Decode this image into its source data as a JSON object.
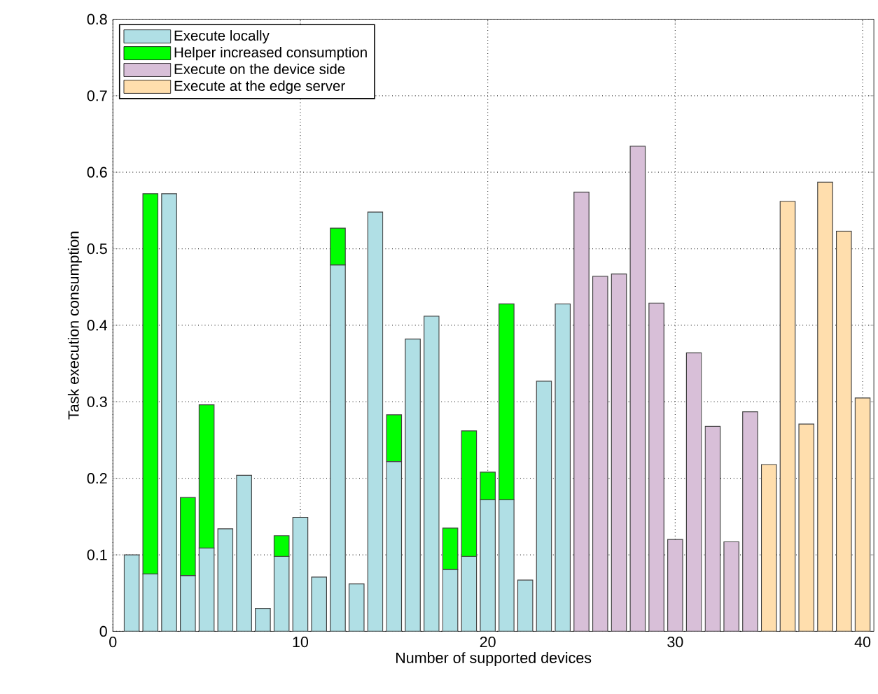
{
  "chart_data": {
    "type": "bar",
    "stacked": true,
    "xlabel": "Number of supported devices",
    "ylabel": "Task execution consumption",
    "x": [
      1,
      2,
      3,
      4,
      5,
      6,
      7,
      8,
      9,
      10,
      11,
      12,
      13,
      14,
      15,
      16,
      17,
      18,
      19,
      20,
      21,
      22,
      23,
      24,
      25,
      26,
      27,
      28,
      29,
      30,
      31,
      32,
      33,
      34,
      35,
      36,
      37,
      38,
      39,
      40
    ],
    "series": [
      {
        "name": "Execute locally",
        "color": "#b0dfe5",
        "values": [
          0.1,
          0.075,
          0.572,
          0.073,
          0.109,
          0.134,
          0.204,
          0.03,
          0.098,
          0.149,
          0.071,
          0.479,
          0.062,
          0.548,
          0.222,
          0.382,
          0.412,
          0.081,
          0.098,
          0.172,
          0.172,
          0.067,
          0.327,
          0.428,
          null,
          null,
          null,
          null,
          null,
          null,
          null,
          null,
          null,
          null,
          null,
          null,
          null,
          null,
          null,
          null
        ]
      },
      {
        "name": "Helper increased consumption",
        "color": "#00ff00",
        "values": [
          null,
          0.497,
          null,
          0.102,
          0.187,
          null,
          null,
          null,
          0.027,
          null,
          null,
          0.048,
          null,
          null,
          0.061,
          null,
          null,
          0.054,
          0.164,
          0.036,
          0.256,
          null,
          null,
          null,
          null,
          null,
          null,
          null,
          null,
          null,
          null,
          null,
          null,
          null,
          null,
          null,
          null,
          null,
          null,
          null
        ]
      },
      {
        "name": "Execute on the device side",
        "color": "#d8bfd8",
        "values": [
          null,
          null,
          null,
          null,
          null,
          null,
          null,
          null,
          null,
          null,
          null,
          null,
          null,
          null,
          null,
          null,
          null,
          null,
          null,
          null,
          null,
          null,
          null,
          null,
          0.574,
          0.464,
          0.467,
          0.634,
          0.429,
          0.12,
          0.364,
          0.268,
          0.117,
          0.287,
          null,
          null,
          null,
          null,
          null,
          null
        ]
      },
      {
        "name": "Execute at the edge server",
        "color": "#ffdead",
        "values": [
          null,
          null,
          null,
          null,
          null,
          null,
          null,
          null,
          null,
          null,
          null,
          null,
          null,
          null,
          null,
          null,
          null,
          null,
          null,
          null,
          null,
          null,
          null,
          null,
          null,
          null,
          null,
          null,
          null,
          null,
          null,
          null,
          null,
          null,
          0.218,
          0.562,
          0.271,
          0.587,
          0.523,
          0.305
        ]
      }
    ],
    "xlim": [
      0,
      40.6
    ],
    "ylim": [
      0,
      0.8
    ],
    "xticks": [
      0,
      10,
      20,
      30,
      40
    ],
    "yticks": [
      0,
      0.1,
      0.2,
      0.3,
      0.4,
      0.5,
      0.6,
      0.7,
      0.8
    ],
    "grid": true,
    "legend": "top left"
  }
}
